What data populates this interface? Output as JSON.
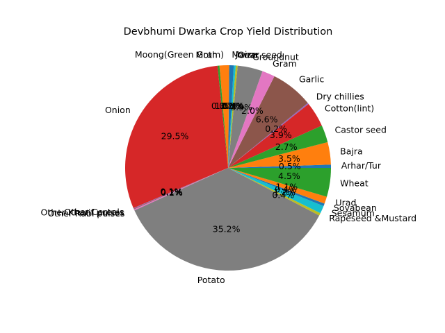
{
  "chart_data": {
    "type": "pie",
    "title": "Devbhumi Dwarka Crop Yield Distribution",
    "start_angle_deg": 0,
    "direction": "counterclockwise",
    "slices": [
      {
        "label": "Arhar/Tur",
        "value": 0.5,
        "pct_label": "0.5%",
        "color": "#1f77b4"
      },
      {
        "label": "Bajra",
        "value": 3.5,
        "pct_label": "3.5%",
        "color": "#ff7f0e"
      },
      {
        "label": "Castor seed",
        "value": 2.7,
        "pct_label": "2.7%",
        "color": "#2ca02c"
      },
      {
        "label": "Cotton(lint)",
        "value": 3.9,
        "pct_label": "3.9%",
        "color": "#d62728"
      },
      {
        "label": "Dry chillies",
        "value": 0.2,
        "pct_label": "0.2%",
        "color": "#9467bd"
      },
      {
        "label": "Garlic",
        "value": 6.6,
        "pct_label": "6.6%",
        "color": "#8c564b"
      },
      {
        "label": "Gram",
        "value": 2.0,
        "pct_label": "2.0%",
        "color": "#e377c2"
      },
      {
        "label": "Groundnut",
        "value": 3.9,
        "pct_label": "3.9%",
        "color": "#7f7f7f"
      },
      {
        "label": "Guar seed",
        "value": 0.3,
        "pct_label": "0.3%",
        "color": "#bcbd22"
      },
      {
        "label": "Jowar",
        "value": 0.3,
        "pct_label": "0.3%",
        "color": "#17becf"
      },
      {
        "label": "Maize",
        "value": 0.7,
        "pct_label": "0.7%",
        "color": "#1f77b4"
      },
      {
        "label": "Moong(Green Gram)",
        "value": 1.5,
        "pct_label": "1.5%",
        "color": "#ff7f0e"
      },
      {
        "label": "Moth",
        "value": 0.3,
        "pct_label": "0.3%",
        "color": "#2ca02c"
      },
      {
        "label": "Onion",
        "value": 29.5,
        "pct_label": "29.5%",
        "color": "#d62728"
      },
      {
        "label": "Other Cereals",
        "value": 0.1,
        "pct_label": "0.1%",
        "color": "#9467bd"
      },
      {
        "label": "Other Kharif pulses",
        "value": 0.1,
        "pct_label": "0.1%",
        "color": "#8c564b"
      },
      {
        "label": "Other Rabi pulses",
        "value": 0.2,
        "pct_label": "0.2%",
        "color": "#e377c2"
      },
      {
        "label": "Potato",
        "value": 35.2,
        "pct_label": "35.2%",
        "color": "#7f7f7f"
      },
      {
        "label": "Rapeseed &Mustard",
        "value": 0.4,
        "pct_label": "0.4%",
        "color": "#bcbd22"
      },
      {
        "label": "Sesamum",
        "value": 1.2,
        "pct_label": "1.2%",
        "color": "#17becf"
      },
      {
        "label": "Soyabean",
        "value": 0.4,
        "pct_label": "0.4%",
        "color": "#1f77b4"
      },
      {
        "label": "Urad",
        "value": 1.1,
        "pct_label": "1.1%",
        "color": "#ff7f0e"
      },
      {
        "label": "Wheat",
        "value": 4.5,
        "pct_label": "4.5%",
        "color": "#2ca02c"
      }
    ]
  }
}
